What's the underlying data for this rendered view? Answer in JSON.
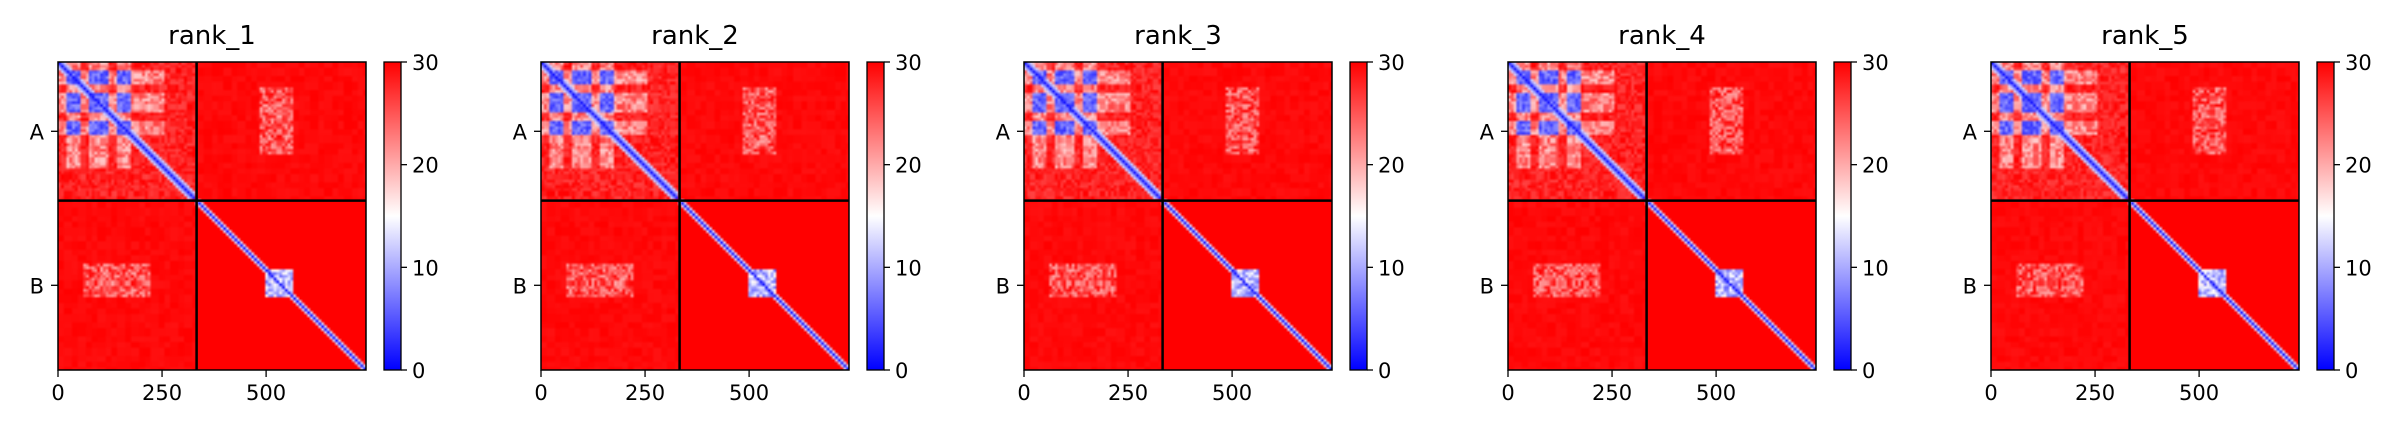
{
  "chart_data": {
    "type": "heatmap",
    "colormap": {
      "low": "#0000ff",
      "mid": "#ffffff",
      "high": "#ff0000",
      "range": [
        0,
        30
      ]
    },
    "colorbar_ticks": [
      "0",
      "10",
      "20",
      "30"
    ],
    "x_ticks": [
      "0",
      "250",
      "500"
    ],
    "x_tick_values": [
      0,
      250,
      500
    ],
    "chain_labels": [
      "A",
      "B"
    ],
    "chain_boundary": 333,
    "total_length": 740,
    "panels": [
      {
        "title": "rank_1"
      },
      {
        "title": "rank_2"
      },
      {
        "title": "rank_3"
      },
      {
        "title": "rank_4"
      },
      {
        "title": "rank_5"
      }
    ]
  }
}
